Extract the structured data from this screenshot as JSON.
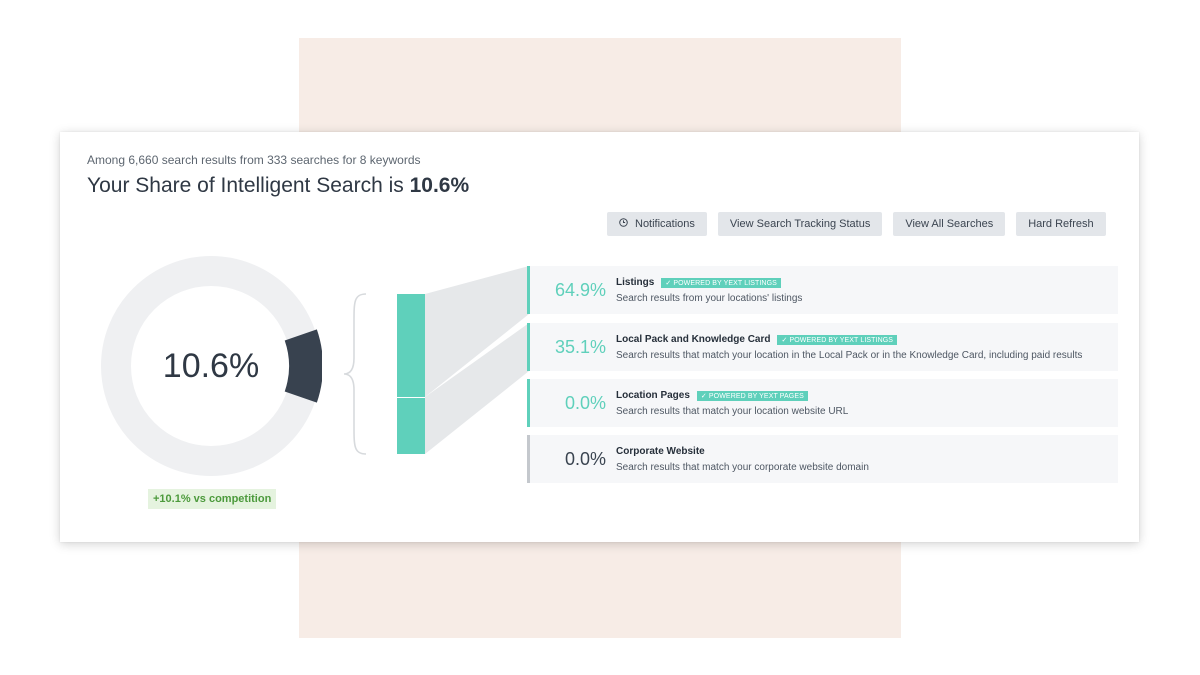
{
  "header": {
    "subtitle": "Among 6,660 search results from 333 searches for 8 keywords",
    "headline_prefix": "Your Share of Intelligent Search is",
    "headline_value": "10.6%"
  },
  "toolbar": {
    "notifications_icon": "clock-icon",
    "notifications_label": "Notifications",
    "tracking_label": "View Search Tracking Status",
    "all_searches_label": "View All Searches",
    "refresh_label": "Hard Refresh"
  },
  "donut": {
    "value_label": "10.6%",
    "share": 0.106,
    "track_color": "#eff0f2",
    "segment_color": "#38424f"
  },
  "competition": {
    "label": "+10.1% vs competition"
  },
  "breakdown": {
    "accent_color": "#5fd0bb",
    "rows": [
      {
        "pct": "64.9%",
        "title": "Listings",
        "badge": "✓ POWERED BY YEXT LISTINGS",
        "desc": "Search results from your locations' listings"
      },
      {
        "pct": "35.1%",
        "title": "Local Pack and Knowledge Card",
        "badge": "✓ POWERED BY YEXT LISTINGS",
        "desc": "Search results that match your location in the Local Pack or in the Knowledge Card, including paid results"
      },
      {
        "pct": "0.0%",
        "title": "Location Pages",
        "badge": "✓ POWERED BY YEXT PAGES",
        "desc": "Search results that match your location website URL"
      },
      {
        "pct": "0.0%",
        "title": "Corporate Website",
        "badge": "",
        "desc": "Search results that match your corporate website domain"
      }
    ]
  }
}
